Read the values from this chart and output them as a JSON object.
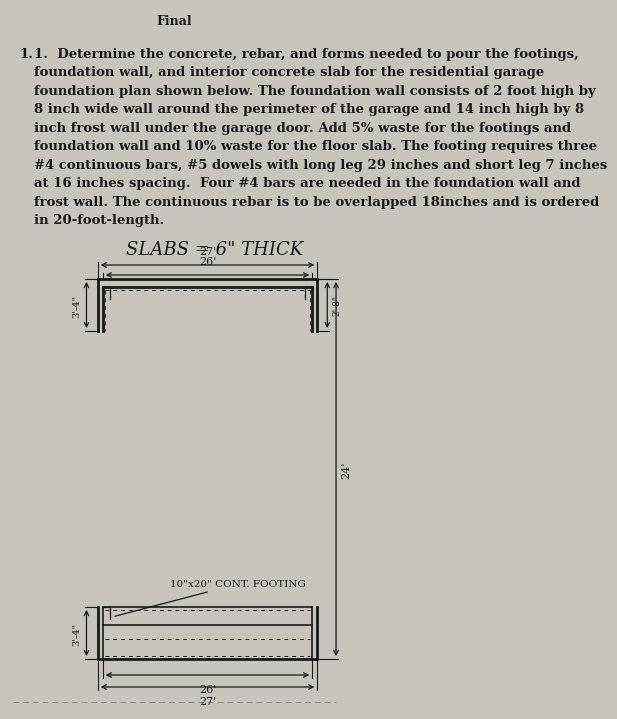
{
  "bg_color": "#c8c4bc",
  "text_color": "#1a1a1a",
  "paragraph_lines": [
    "1.  Determine the concrete, rebar, and forms needed to pour the footings,",
    "    foundation wall, and interior concrete slab for the residential garage",
    "    foundation plan shown below. The foundation wall consists of 2 foot high by",
    "    8 inch wide wall around the perimeter of the garage and 14 inch high by 8",
    "    inch frost wall under the garage door. Add 5% waste for the footings and",
    "    foundation wall and 10% waste for the floor slab. The footing requires three",
    "    #4 continuous bars, #5 dowels with long leg 29 inches and short leg 7 inches",
    "    at 16 inches spacing.  Four #4 bars are needed in the foundation wall and",
    "    frost wall. The continuous rebar is to be overlapped 18inches and is ordered",
    "    in 20-foot-length."
  ],
  "subtitle": "SLABS = 6\" THICK",
  "dim_27_top": "27'",
  "dim_26_top": "26'",
  "dim_34_left_top": "3'-4\"",
  "dim_34_left_bot": "3'-4\"",
  "dim_21_8_right": "2'-8\"",
  "dim_24_right": "24'",
  "dim_26_bot": "26'",
  "dim_27_bot": "27'",
  "footing_label": "10\"x20\" CONT. FOOTING"
}
